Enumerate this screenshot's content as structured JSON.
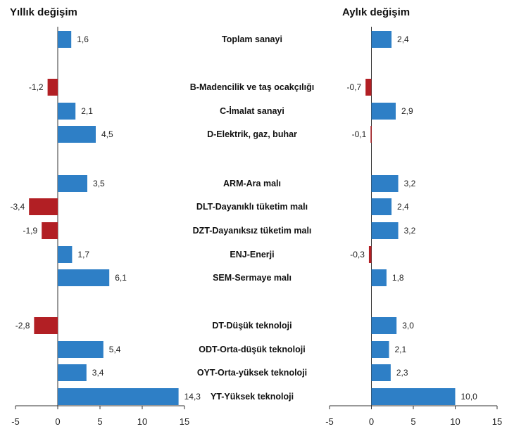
{
  "colors": {
    "positive": "#2e7fc6",
    "negative": "#b21f24",
    "axis": "#333333"
  },
  "chart_data": [
    {
      "type": "bar",
      "orientation": "horizontal",
      "title": "Yıllık değişim",
      "categories": [
        "Toplam sanayi",
        "B-Madencilik ve taş ocakçılığı",
        "C-İmalat sanayi",
        "D-Elektrik, gaz, buhar",
        "ARM-Ara malı",
        "DLT-Dayanıklı tüketim malı",
        "DZT-Dayanıksız tüketim malı",
        "ENJ-Enerji",
        "SEM-Sermaye malı",
        "DT-Düşük teknoloji",
        "ODT-Orta-düşük teknoloji",
        "OYT-Orta-yüksek teknoloji",
        "YT-Yüksek teknoloji"
      ],
      "values": [
        1.6,
        -1.2,
        2.1,
        4.5,
        3.5,
        -3.4,
        -1.9,
        1.7,
        6.1,
        -2.8,
        5.4,
        3.4,
        14.3
      ],
      "value_labels": [
        "1,6",
        "-1,2",
        "2,1",
        "4,5",
        "3,5",
        "-3,4",
        "-1,9",
        "1,7",
        "6,1",
        "-2,8",
        "5,4",
        "3,4",
        "14,3"
      ],
      "xlim": [
        -5,
        15
      ],
      "xticks": [
        -5,
        0,
        5,
        10,
        15
      ],
      "xtick_labels": [
        "-5",
        "0",
        "5",
        "10",
        "15"
      ],
      "grid": false
    },
    {
      "type": "bar",
      "orientation": "horizontal",
      "title": "Aylık değişim",
      "categories": [
        "Toplam sanayi",
        "B-Madencilik ve taş ocakçılığı",
        "C-İmalat sanayi",
        "D-Elektrik, gaz, buhar",
        "ARM-Ara malı",
        "DLT-Dayanıklı tüketim malı",
        "DZT-Dayanıksız tüketim malı",
        "ENJ-Enerji",
        "SEM-Sermaye malı",
        "DT-Düşük teknoloji",
        "ODT-Orta-düşük teknoloji",
        "OYT-Orta-yüksek teknoloji",
        "YT-Yüksek teknoloji"
      ],
      "values": [
        2.4,
        -0.7,
        2.9,
        -0.1,
        3.2,
        2.4,
        3.2,
        -0.3,
        1.8,
        3.0,
        2.1,
        2.3,
        10.0
      ],
      "value_labels": [
        "2,4",
        "-0,7",
        "2,9",
        "-0,1",
        "3,2",
        "2,4",
        "3,2",
        "-0,3",
        "1,8",
        "3,0",
        "2,1",
        "2,3",
        "10,0"
      ],
      "xlim": [
        -5,
        15
      ],
      "xticks": [
        -5,
        0,
        5,
        10,
        15
      ],
      "xtick_labels": [
        "-5",
        "0",
        "5",
        "10",
        "15"
      ],
      "grid": false
    }
  ]
}
